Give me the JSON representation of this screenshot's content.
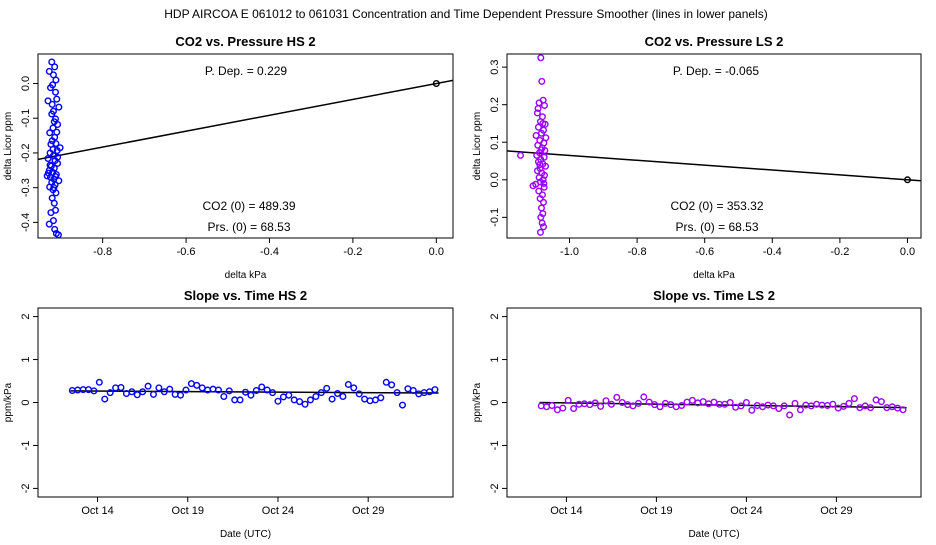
{
  "main_title": "HDP    AIRCOA E    061012 to 061031    Concentration and Time Dependent Pressure Smoother (lines in lower panels)",
  "colors": {
    "hs": "#0000ff",
    "ls": "#9900ff",
    "axis": "#000000",
    "fit": "#000000"
  },
  "chart_data": [
    {
      "id": "hs_pressure",
      "type": "scatter",
      "title": "CO2 vs. Pressure HS 2",
      "xlabel": "delta kPa",
      "ylabel": "delta Licor ppm",
      "xlim": [
        -0.955,
        0.04
      ],
      "ylim": [
        -0.445,
        0.085
      ],
      "xticks": [
        -0.8,
        -0.6,
        -0.4,
        -0.2,
        0.0
      ],
      "xtick_labels": [
        "-0.8",
        "-0.6",
        "-0.4",
        "-0.2",
        "0.0"
      ],
      "yticks": [
        -0.4,
        -0.3,
        -0.2,
        -0.1,
        0.0
      ],
      "ytick_labels": [
        "-0.4",
        "-0.3",
        "-0.2",
        "-0.1",
        "0.0"
      ],
      "fit_line": {
        "x": [
          -0.955,
          0.04
        ],
        "y": [
          -0.2186,
          0.0092
        ]
      },
      "reference_point": {
        "x": 0.0,
        "y": 0.0
      },
      "point_color": "hs",
      "points": [
        [
          -0.922,
          0.062
        ],
        [
          -0.915,
          0.048
        ],
        [
          -0.928,
          0.035
        ],
        [
          -0.918,
          0.025
        ],
        [
          -0.912,
          0.01
        ],
        [
          -0.92,
          -0.004
        ],
        [
          -0.925,
          -0.012
        ],
        [
          -0.913,
          -0.025
        ],
        [
          -0.931,
          -0.05
        ],
        [
          -0.91,
          -0.045
        ],
        [
          -0.905,
          -0.068
        ],
        [
          -0.918,
          -0.08
        ],
        [
          -0.922,
          -0.088
        ],
        [
          -0.913,
          -0.102
        ],
        [
          -0.908,
          -0.118
        ],
        [
          -0.919,
          -0.128
        ],
        [
          -0.927,
          -0.142
        ],
        [
          -0.915,
          -0.155
        ],
        [
          -0.921,
          -0.165
        ],
        [
          -0.912,
          -0.173
        ],
        [
          -0.902,
          -0.185
        ],
        [
          -0.909,
          -0.193
        ],
        [
          -0.926,
          -0.2
        ],
        [
          -0.918,
          -0.208
        ],
        [
          -0.931,
          -0.216
        ],
        [
          -0.914,
          -0.222
        ],
        [
          -0.908,
          -0.23
        ],
        [
          -0.923,
          -0.238
        ],
        [
          -0.916,
          -0.244
        ],
        [
          -0.928,
          -0.25
        ],
        [
          -0.92,
          -0.256
        ],
        [
          -0.911,
          -0.262
        ],
        [
          -0.933,
          -0.266
        ],
        [
          -0.925,
          -0.27
        ],
        [
          -0.917,
          -0.275
        ],
        [
          -0.905,
          -0.28
        ],
        [
          -0.922,
          -0.285
        ],
        [
          -0.914,
          -0.292
        ],
        [
          -0.927,
          -0.298
        ],
        [
          -0.919,
          -0.306
        ],
        [
          -0.912,
          -0.315
        ],
        [
          -0.921,
          -0.33
        ],
        [
          -0.916,
          -0.345
        ],
        [
          -0.913,
          -0.365
        ],
        [
          -0.924,
          -0.372
        ],
        [
          -0.918,
          -0.395
        ],
        [
          -0.928,
          -0.405
        ],
        [
          -0.915,
          -0.42
        ],
        [
          -0.911,
          -0.432
        ],
        [
          -0.906,
          -0.436
        ],
        [
          -0.919,
          -0.19
        ],
        [
          -0.924,
          -0.175
        ],
        [
          -0.91,
          -0.14
        ],
        [
          -0.916,
          -0.11
        ],
        [
          -0.921,
          -0.06
        ],
        [
          -0.926,
          -0.235
        ],
        [
          -0.913,
          -0.268
        ],
        [
          -0.908,
          -0.212
        ],
        [
          -0.93,
          -0.258
        ],
        [
          -0.917,
          -0.3
        ]
      ],
      "annotations": [
        {
          "id": "pdep",
          "text": "P. Dep. =  0.229"
        },
        {
          "id": "co2_0",
          "text": "CO2 (0) =  489.39"
        },
        {
          "id": "prs_0",
          "text": "Prs. (0) =  68.53"
        }
      ]
    },
    {
      "id": "ls_pressure",
      "type": "scatter",
      "title": "CO2 vs. Pressure LS 2",
      "xlabel": "delta kPa",
      "ylabel": "delta Licor ppm",
      "xlim": [
        -1.185,
        0.04
      ],
      "ylim": [
        -0.155,
        0.335
      ],
      "xticks": [
        -1.0,
        -0.8,
        -0.6,
        -0.4,
        -0.2,
        0.0
      ],
      "xtick_labels": [
        "-1.0",
        "-0.8",
        "-0.6",
        "-0.4",
        "-0.2",
        "0.0"
      ],
      "yticks": [
        -0.1,
        0.0,
        0.1,
        0.2,
        0.3
      ],
      "ytick_labels": [
        "-0.1",
        "0.0",
        "0.1",
        "0.2",
        "0.3"
      ],
      "fit_line": {
        "x": [
          -1.185,
          0.04
        ],
        "y": [
          0.077,
          -0.0026
        ]
      },
      "reference_point": {
        "x": 0.0,
        "y": 0.0
      },
      "point_color": "ls",
      "points": [
        [
          -1.085,
          0.325
        ],
        [
          -1.082,
          0.262
        ],
        [
          -1.078,
          0.212
        ],
        [
          -1.09,
          0.205
        ],
        [
          -1.074,
          0.198
        ],
        [
          -1.095,
          0.178
        ],
        [
          -1.08,
          0.168
        ],
        [
          -1.086,
          0.155
        ],
        [
          -1.072,
          0.148
        ],
        [
          -1.092,
          0.14
        ],
        [
          -1.077,
          0.132
        ],
        [
          -1.083,
          0.124
        ],
        [
          -1.099,
          0.118
        ],
        [
          -1.07,
          0.112
        ],
        [
          -1.088,
          0.105
        ],
        [
          -1.076,
          0.098
        ],
        [
          -1.094,
          0.092
        ],
        [
          -1.081,
          0.085
        ],
        [
          -1.073,
          0.078
        ],
        [
          -1.089,
          0.072
        ],
        [
          -1.097,
          0.065
        ],
        [
          -1.075,
          0.06
        ],
        [
          -1.085,
          0.054
        ],
        [
          -1.092,
          0.048
        ],
        [
          -1.079,
          0.042
        ],
        [
          -1.071,
          0.036
        ],
        [
          -1.087,
          0.03
        ],
        [
          -1.095,
          0.024
        ],
        [
          -1.082,
          0.018
        ],
        [
          -1.074,
          0.012
        ],
        [
          -1.09,
          0.006
        ],
        [
          -1.078,
          0.0
        ],
        [
          -1.086,
          -0.006
        ],
        [
          -1.1,
          -0.012
        ],
        [
          -1.108,
          -0.016
        ],
        [
          -1.075,
          -0.02
        ],
        [
          -1.091,
          -0.03
        ],
        [
          -1.08,
          -0.04
        ],
        [
          -1.087,
          -0.05
        ],
        [
          -1.077,
          -0.06
        ],
        [
          -1.083,
          -0.075
        ],
        [
          -1.079,
          -0.09
        ],
        [
          -1.085,
          -0.1
        ],
        [
          -1.081,
          -0.115
        ],
        [
          -1.077,
          -0.125
        ],
        [
          -1.086,
          -0.14
        ],
        [
          -1.145,
          0.065
        ],
        [
          -1.093,
          0.19
        ],
        [
          -1.079,
          0.15
        ],
        [
          -1.084,
          0.08
        ],
        [
          -1.088,
          0.04
        ],
        [
          -1.076,
          -0.01
        ]
      ],
      "annotations": [
        {
          "id": "pdep",
          "text": "P. Dep. =  -0.065"
        },
        {
          "id": "co2_0",
          "text": "CO2 (0) =  353.32"
        },
        {
          "id": "prs_0",
          "text": "Prs. (0) =  68.53"
        }
      ]
    },
    {
      "id": "hs_slope",
      "type": "scatter",
      "title": "Slope vs. Time HS 2",
      "xlabel": "Date (UTC)",
      "ylabel": "ppm/kPa",
      "xlim": [
        10.7,
        33.7
      ],
      "ylim": [
        -2.2,
        2.2
      ],
      "xticks": [
        14,
        19,
        24,
        29
      ],
      "xtick_labels": [
        "Oct 14",
        "Oct 19",
        "Oct 24",
        "Oct 29"
      ],
      "yticks": [
        -2,
        -1,
        0,
        1,
        2
      ],
      "ytick_labels": [
        "-2",
        "-1",
        "0",
        "1",
        "2"
      ],
      "fit_line": {
        "x": [
          12.5,
          32.9
        ],
        "y": [
          0.27,
          0.22
        ]
      },
      "point_color": "hs",
      "points": [
        [
          12.6,
          0.28
        ],
        [
          12.9,
          0.29
        ],
        [
          13.2,
          0.3
        ],
        [
          13.5,
          0.3
        ],
        [
          13.8,
          0.27
        ],
        [
          14.1,
          0.47
        ],
        [
          14.4,
          0.08
        ],
        [
          14.7,
          0.23
        ],
        [
          15.0,
          0.34
        ],
        [
          15.3,
          0.35
        ],
        [
          15.6,
          0.21
        ],
        [
          15.9,
          0.25
        ],
        [
          16.2,
          0.18
        ],
        [
          16.5,
          0.25
        ],
        [
          16.8,
          0.38
        ],
        [
          17.1,
          0.19
        ],
        [
          17.4,
          0.34
        ],
        [
          17.7,
          0.25
        ],
        [
          18.0,
          0.31
        ],
        [
          18.3,
          0.19
        ],
        [
          18.6,
          0.17
        ],
        [
          18.9,
          0.29
        ],
        [
          19.2,
          0.44
        ],
        [
          19.5,
          0.4
        ],
        [
          19.8,
          0.34
        ],
        [
          20.1,
          0.29
        ],
        [
          20.4,
          0.31
        ],
        [
          20.7,
          0.29
        ],
        [
          21.0,
          0.14
        ],
        [
          21.3,
          0.27
        ],
        [
          21.6,
          0.06
        ],
        [
          21.9,
          0.06
        ],
        [
          22.2,
          0.24
        ],
        [
          22.5,
          0.17
        ],
        [
          22.8,
          0.28
        ],
        [
          23.1,
          0.36
        ],
        [
          23.4,
          0.29
        ],
        [
          23.7,
          0.23
        ],
        [
          24.0,
          0.03
        ],
        [
          24.3,
          0.13
        ],
        [
          24.6,
          0.17
        ],
        [
          24.9,
          0.06
        ],
        [
          25.2,
          0.02
        ],
        [
          25.5,
          -0.04
        ],
        [
          25.8,
          0.06
        ],
        [
          26.1,
          0.14
        ],
        [
          26.4,
          0.23
        ],
        [
          26.7,
          0.33
        ],
        [
          27.0,
          0.08
        ],
        [
          27.3,
          0.21
        ],
        [
          27.6,
          0.14
        ],
        [
          27.9,
          0.42
        ],
        [
          28.2,
          0.34
        ],
        [
          28.5,
          0.2
        ],
        [
          28.8,
          0.08
        ],
        [
          29.1,
          0.04
        ],
        [
          29.4,
          0.06
        ],
        [
          29.7,
          0.11
        ],
        [
          30.0,
          0.47
        ],
        [
          30.3,
          0.41
        ],
        [
          30.6,
          0.23
        ],
        [
          30.9,
          -0.06
        ],
        [
          31.2,
          0.32
        ],
        [
          31.5,
          0.28
        ],
        [
          31.8,
          0.2
        ],
        [
          32.1,
          0.23
        ],
        [
          32.4,
          0.25
        ],
        [
          32.7,
          0.3
        ]
      ],
      "annotations": []
    },
    {
      "id": "ls_slope",
      "type": "scatter",
      "title": "Slope vs. Time LS 2",
      "xlabel": "Date (UTC)",
      "ylabel": "ppm/kPa",
      "xlim": [
        10.7,
        33.7
      ],
      "ylim": [
        -2.2,
        2.2
      ],
      "xticks": [
        14,
        19,
        24,
        29
      ],
      "xtick_labels": [
        "Oct 14",
        "Oct 19",
        "Oct 24",
        "Oct 29"
      ],
      "yticks": [
        -2,
        -1,
        0,
        1,
        2
      ],
      "ytick_labels": [
        "-2",
        "-1",
        "0",
        "1",
        "2"
      ],
      "fit_line": {
        "x": [
          12.5,
          32.9
        ],
        "y": [
          0.0,
          -0.12
        ]
      },
      "point_color": "ls",
      "points": [
        [
          12.6,
          -0.08
        ],
        [
          12.9,
          -0.1
        ],
        [
          13.2,
          -0.07
        ],
        [
          13.5,
          -0.17
        ],
        [
          13.8,
          -0.13
        ],
        [
          14.1,
          0.05
        ],
        [
          14.4,
          -0.14
        ],
        [
          14.7,
          -0.04
        ],
        [
          15.0,
          -0.03
        ],
        [
          15.3,
          -0.05
        ],
        [
          15.6,
          -0.01
        ],
        [
          15.9,
          -0.09
        ],
        [
          16.2,
          0.04
        ],
        [
          16.5,
          -0.04
        ],
        [
          16.8,
          0.12
        ],
        [
          17.1,
          0.0
        ],
        [
          17.4,
          -0.05
        ],
        [
          17.7,
          -0.08
        ],
        [
          18.0,
          -0.02
        ],
        [
          18.3,
          0.13
        ],
        [
          18.6,
          0.01
        ],
        [
          18.9,
          -0.05
        ],
        [
          19.2,
          -0.1
        ],
        [
          19.5,
          -0.02
        ],
        [
          19.8,
          -0.05
        ],
        [
          20.1,
          -0.1
        ],
        [
          20.4,
          -0.07
        ],
        [
          20.7,
          0.01
        ],
        [
          21.0,
          0.05
        ],
        [
          21.3,
          -0.01
        ],
        [
          21.6,
          0.02
        ],
        [
          21.9,
          -0.03
        ],
        [
          22.2,
          0.01
        ],
        [
          22.5,
          -0.04
        ],
        [
          22.8,
          -0.04
        ],
        [
          23.1,
          0.0
        ],
        [
          23.4,
          -0.11
        ],
        [
          23.7,
          -0.08
        ],
        [
          24.0,
          0.0
        ],
        [
          24.3,
          -0.18
        ],
        [
          24.6,
          -0.07
        ],
        [
          24.9,
          -0.1
        ],
        [
          25.2,
          -0.06
        ],
        [
          25.5,
          -0.08
        ],
        [
          25.8,
          -0.14
        ],
        [
          26.1,
          -0.08
        ],
        [
          26.4,
          -0.29
        ],
        [
          26.7,
          -0.02
        ],
        [
          27.0,
          -0.17
        ],
        [
          27.3,
          -0.06
        ],
        [
          27.6,
          -0.08
        ],
        [
          27.9,
          -0.04
        ],
        [
          28.2,
          -0.06
        ],
        [
          28.5,
          -0.07
        ],
        [
          28.8,
          -0.04
        ],
        [
          29.1,
          -0.13
        ],
        [
          29.4,
          -0.09
        ],
        [
          29.7,
          -0.02
        ],
        [
          30.0,
          0.09
        ],
        [
          30.3,
          -0.12
        ],
        [
          30.6,
          -0.08
        ],
        [
          30.9,
          -0.12
        ],
        [
          31.2,
          0.06
        ],
        [
          31.5,
          0.02
        ],
        [
          31.8,
          -0.12
        ],
        [
          32.1,
          -0.1
        ],
        [
          32.4,
          -0.13
        ],
        [
          32.7,
          -0.17
        ]
      ],
      "annotations": []
    }
  ]
}
